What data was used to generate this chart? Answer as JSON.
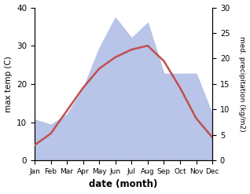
{
  "months": [
    "Jan",
    "Feb",
    "Mar",
    "Apr",
    "May",
    "Jun",
    "Jul",
    "Aug",
    "Sep",
    "Oct",
    "Nov",
    "Dec"
  ],
  "temp": [
    4.0,
    7.0,
    13.0,
    19.0,
    24.0,
    27.0,
    29.0,
    30.0,
    26.0,
    19.0,
    11.0,
    6.0
  ],
  "precip": [
    8.0,
    7.0,
    9.0,
    14.0,
    22.0,
    28.0,
    24.0,
    27.0,
    17.0,
    17.0,
    17.0,
    9.0
  ],
  "temp_color": "#c0504d",
  "precip_fill_color": "#b8c4e8",
  "temp_ylim": [
    0,
    40
  ],
  "precip_ylim": [
    0,
    30
  ],
  "temp_yticks": [
    0,
    10,
    20,
    30,
    40
  ],
  "precip_yticks": [
    0,
    5,
    10,
    15,
    20,
    25,
    30
  ],
  "ylabel_left": "max temp (C)",
  "ylabel_right": "med. precipitation (kg/m2)",
  "xlabel": "date (month)",
  "figsize": [
    3.18,
    2.47
  ],
  "dpi": 100
}
